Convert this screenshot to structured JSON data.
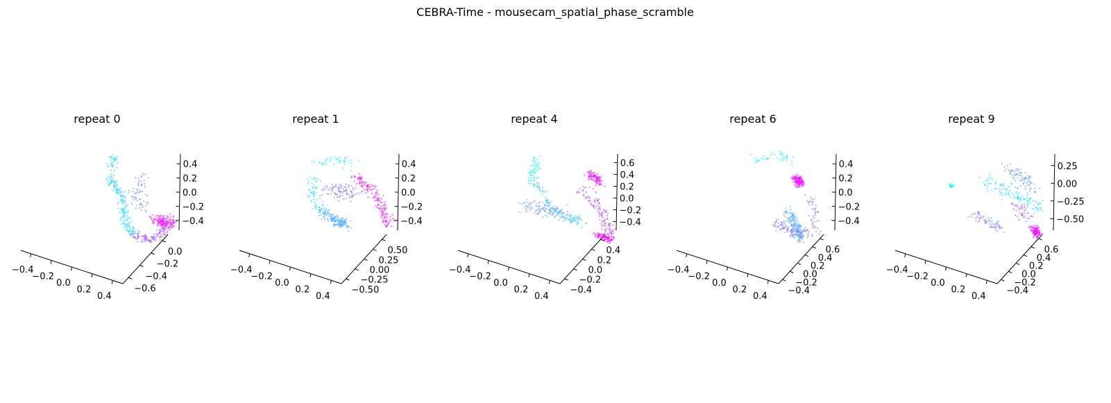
{
  "figure": {
    "title": "CEBRA-Time - mousecam_spatial_phase_scramble"
  },
  "colormap": {
    "name": "cool",
    "start": "#00ffff",
    "end": "#ff00ff"
  },
  "chart_data": [
    {
      "type": "scatter3d",
      "title": "repeat 0",
      "seed": 11,
      "ticks": {
        "x": [
          "−0.4",
          "−0.2",
          "0.0",
          "0.2",
          "0.4"
        ],
        "y": [
          "−0.6",
          "−0.4",
          "−0.2",
          "0.0"
        ],
        "z": [
          "−0.4",
          "−0.2",
          "0.0",
          "0.2",
          "0.4"
        ]
      },
      "clusters": [
        {
          "path": [
            [
              0.45,
              0.06
            ],
            [
              0.42,
              0.3
            ],
            [
              0.52,
              0.46
            ],
            [
              0.54,
              0.7
            ],
            [
              0.62,
              0.85
            ]
          ],
          "t": [
            0.02,
            0.3
          ],
          "n": 220,
          "spread": 0.03
        },
        {
          "path": [
            [
              0.62,
              0.86
            ],
            [
              0.78,
              0.9
            ],
            [
              0.9,
              0.8
            ]
          ],
          "t": [
            0.55,
            0.75
          ],
          "n": 110,
          "spread": 0.03
        },
        {
          "path": [
            [
              0.82,
              0.7
            ],
            [
              0.95,
              0.75
            ]
          ],
          "t": [
            0.85,
            1.0
          ],
          "n": 160,
          "spread": 0.04
        },
        {
          "path": [
            [
              0.72,
              0.25
            ],
            [
              0.66,
              0.45
            ],
            [
              0.7,
              0.6
            ]
          ],
          "t": [
            0.4,
            0.6
          ],
          "n": 60,
          "spread": 0.05
        }
      ]
    },
    {
      "type": "scatter3d",
      "title": "repeat 1",
      "seed": 23,
      "ticks": {
        "x": [
          "−0.4",
          "−0.2",
          "0.0",
          "0.2",
          "0.4"
        ],
        "y": [
          "−0.50",
          "−0.25",
          "0.00",
          "0.25",
          "0.50"
        ],
        "z": [
          "−0.4",
          "−0.2",
          "0.0",
          "0.2",
          "0.4"
        ]
      },
      "clusters": [
        {
          "path": [
            [
              0.3,
              0.15
            ],
            [
              0.5,
              0.12
            ],
            [
              0.62,
              0.15
            ]
          ],
          "t": [
            0.0,
            0.1
          ],
          "n": 40,
          "spread": 0.04
        },
        {
          "path": [
            [
              0.3,
              0.25
            ],
            [
              0.28,
              0.45
            ],
            [
              0.32,
              0.62
            ]
          ],
          "t": [
            0.05,
            0.2
          ],
          "n": 60,
          "spread": 0.04
        },
        {
          "path": [
            [
              0.35,
              0.6
            ],
            [
              0.48,
              0.72
            ],
            [
              0.58,
              0.75
            ]
          ],
          "t": [
            0.25,
            0.4
          ],
          "n": 170,
          "spread": 0.035
        },
        {
          "path": [
            [
              0.42,
              0.4
            ],
            [
              0.55,
              0.42
            ],
            [
              0.65,
              0.45
            ]
          ],
          "t": [
            0.45,
            0.65
          ],
          "n": 90,
          "spread": 0.06
        },
        {
          "path": [
            [
              0.65,
              0.28
            ],
            [
              0.8,
              0.42
            ],
            [
              0.9,
              0.6
            ],
            [
              0.95,
              0.75
            ]
          ],
          "t": [
            0.82,
            1.0
          ],
          "n": 160,
          "spread": 0.035
        }
      ]
    },
    {
      "type": "scatter3d",
      "title": "repeat 4",
      "seed": 37,
      "ticks": {
        "x": [
          "−0.4",
          "−0.2",
          "0.0",
          "0.2",
          "0.4"
        ],
        "y": [
          "−0.4",
          "−0.2",
          "0.0",
          "0.2",
          "0.4"
        ],
        "z": [
          "−0.4",
          "−0.2",
          "0.0",
          "0.2",
          "0.4",
          "0.6"
        ]
      },
      "clusters": [
        {
          "path": [
            [
              0.32,
              0.08
            ],
            [
              0.3,
              0.22
            ],
            [
              0.28,
              0.3
            ]
          ],
          "t": [
            0.0,
            0.1
          ],
          "n": 50,
          "spread": 0.03
        },
        {
          "path": [
            [
              0.3,
              0.3
            ],
            [
              0.45,
              0.6
            ],
            [
              0.6,
              0.68
            ],
            [
              0.72,
              0.72
            ]
          ],
          "t": [
            0.15,
            0.3
          ],
          "n": 130,
          "spread": 0.035
        },
        {
          "path": [
            [
              0.2,
              0.55
            ],
            [
              0.4,
              0.6
            ],
            [
              0.55,
              0.65
            ]
          ],
          "t": [
            0.35,
            0.5
          ],
          "n": 100,
          "spread": 0.05
        },
        {
          "path": [
            [
              0.78,
              0.25
            ],
            [
              0.84,
              0.28
            ],
            [
              0.88,
              0.35
            ]
          ],
          "t": [
            0.85,
            0.95
          ],
          "n": 100,
          "spread": 0.03
        },
        {
          "path": [
            [
              0.72,
              0.4
            ],
            [
              0.88,
              0.6
            ],
            [
              0.98,
              0.85
            ]
          ],
          "t": [
            0.6,
            0.85
          ],
          "n": 110,
          "spread": 0.04
        },
        {
          "path": [
            [
              0.85,
              0.85
            ],
            [
              0.98,
              0.9
            ]
          ],
          "t": [
            0.9,
            1.0
          ],
          "n": 90,
          "spread": 0.03
        }
      ]
    },
    {
      "type": "scatter3d",
      "title": "repeat 6",
      "seed": 53,
      "ticks": {
        "x": [
          "−0.4",
          "−0.2",
          "0.0",
          "0.2",
          "0.4"
        ],
        "y": [
          "−0.4",
          "−0.2",
          "0.0",
          "0.2",
          "0.4",
          "0.6"
        ],
        "z": [
          "−0.4",
          "−0.2",
          "0.0",
          "0.2",
          "0.4"
        ]
      },
      "clusters": [
        {
          "path": [
            [
              0.3,
              0.12
            ],
            [
              0.55,
              0.05
            ],
            [
              0.62,
              0.12
            ]
          ],
          "t": [
            0.0,
            0.1
          ],
          "n": 40,
          "spread": 0.035
        },
        {
          "path": [
            [
              0.68,
              0.28
            ],
            [
              0.72,
              0.35
            ]
          ],
          "t": [
            0.85,
            1.0
          ],
          "n": 130,
          "spread": 0.03
        },
        {
          "path": [
            [
              0.62,
              0.62
            ],
            [
              0.68,
              0.78
            ],
            [
              0.72,
              0.9
            ]
          ],
          "t": [
            0.25,
            0.4
          ],
          "n": 170,
          "spread": 0.035
        },
        {
          "path": [
            [
              0.48,
              0.72
            ],
            [
              0.65,
              0.82
            ],
            [
              0.8,
              0.85
            ]
          ],
          "t": [
            0.45,
            0.6
          ],
          "n": 100,
          "spread": 0.04
        },
        {
          "path": [
            [
              0.8,
              0.45
            ],
            [
              0.84,
              0.62
            ],
            [
              0.86,
              0.82
            ]
          ],
          "t": [
            0.55,
            0.7
          ],
          "n": 40,
          "spread": 0.03
        }
      ]
    },
    {
      "type": "scatter3d",
      "title": "repeat 9",
      "seed": 71,
      "ticks": {
        "x": [
          "−0.4",
          "−0.2",
          "0.0",
          "0.2",
          "0.4"
        ],
        "y": [
          "−0.4",
          "−0.2",
          "0.0",
          "0.2",
          "0.4",
          "0.6"
        ],
        "z": [
          "−0.50",
          "−0.25",
          "0.00",
          "0.25"
        ]
      },
      "clusters": [
        {
          "path": [
            [
              0.12,
              0.35
            ],
            [
              0.14,
              0.38
            ]
          ],
          "t": [
            0.0,
            0.05
          ],
          "n": 20,
          "spread": 0.015
        },
        {
          "path": [
            [
              0.45,
              0.3
            ],
            [
              0.6,
              0.4
            ],
            [
              0.75,
              0.5
            ],
            [
              0.92,
              0.6
            ]
          ],
          "t": [
            0.05,
            0.2
          ],
          "n": 120,
          "spread": 0.06
        },
        {
          "path": [
            [
              0.62,
              0.2
            ],
            [
              0.75,
              0.28
            ],
            [
              0.85,
              0.4
            ]
          ],
          "t": [
            0.3,
            0.5
          ],
          "n": 80,
          "spread": 0.04
        },
        {
          "path": [
            [
              0.32,
              0.65
            ],
            [
              0.45,
              0.72
            ],
            [
              0.55,
              0.78
            ]
          ],
          "t": [
            0.4,
            0.55
          ],
          "n": 70,
          "spread": 0.035
        },
        {
          "path": [
            [
              0.85,
              0.78
            ],
            [
              0.88,
              0.86
            ]
          ],
          "t": [
            0.88,
            1.0
          ],
          "n": 110,
          "spread": 0.025
        },
        {
          "path": [
            [
              0.7,
              0.55
            ],
            [
              0.8,
              0.7
            ]
          ],
          "t": [
            0.55,
            0.75
          ],
          "n": 40,
          "spread": 0.04
        }
      ]
    }
  ]
}
